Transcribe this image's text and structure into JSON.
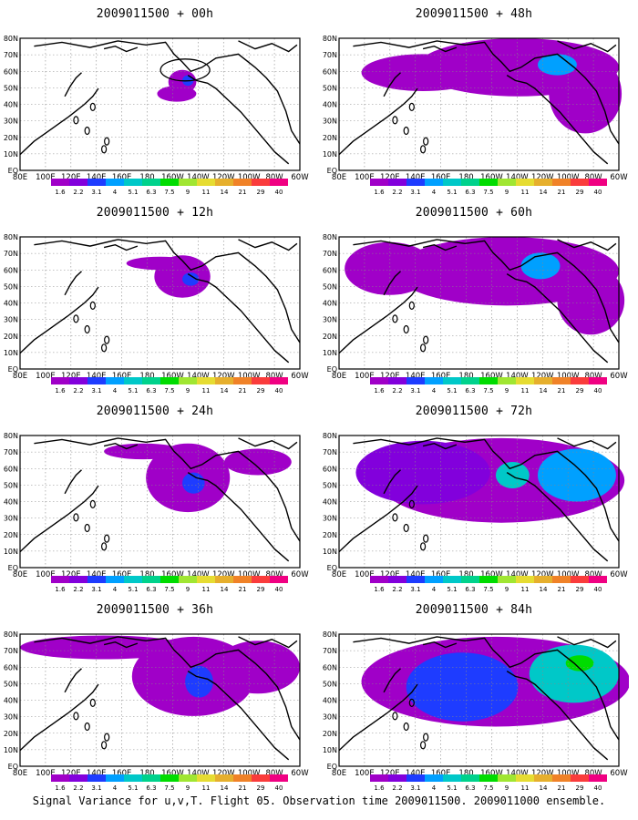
{
  "panels": [
    {
      "title": "2009011500 + 00h",
      "spread": 0
    },
    {
      "title": "2009011500 + 48h",
      "spread": 4
    },
    {
      "title": "2009011500 + 12h",
      "spread": 1
    },
    {
      "title": "2009011500 + 60h",
      "spread": 5
    },
    {
      "title": "2009011500 + 24h",
      "spread": 2
    },
    {
      "title": "2009011500 + 72h",
      "spread": 6
    },
    {
      "title": "2009011500 + 36h",
      "spread": 3
    },
    {
      "title": "2009011500 + 84h",
      "spread": 7
    }
  ],
  "lat_labels": [
    "80N",
    "70N",
    "60N",
    "50N",
    "40N",
    "30N",
    "20N",
    "10N",
    "EQ"
  ],
  "lon_labels": [
    "80E",
    "100E",
    "120E",
    "140E",
    "160E",
    "180",
    "160W",
    "140W",
    "120W",
    "100W",
    "80W",
    "60W"
  ],
  "colorbar": {
    "labels": [
      "1.6",
      "2.2",
      "3.1",
      "4",
      "5.1",
      "6.3",
      "7.5",
      "9",
      "11",
      "14",
      "21",
      "29",
      "40"
    ],
    "colors": [
      "#a000c8",
      "#8200dc",
      "#1e3cff",
      "#00a0ff",
      "#00c8c8",
      "#00d28c",
      "#00dc00",
      "#a0e632",
      "#e6dc32",
      "#e6af2d",
      "#f08228",
      "#fa3c3c",
      "#f00082"
    ]
  },
  "footer": "Signal Variance for u,v,T. Flight 05. Observation time 2009011500. 2009011000 ensemble."
}
